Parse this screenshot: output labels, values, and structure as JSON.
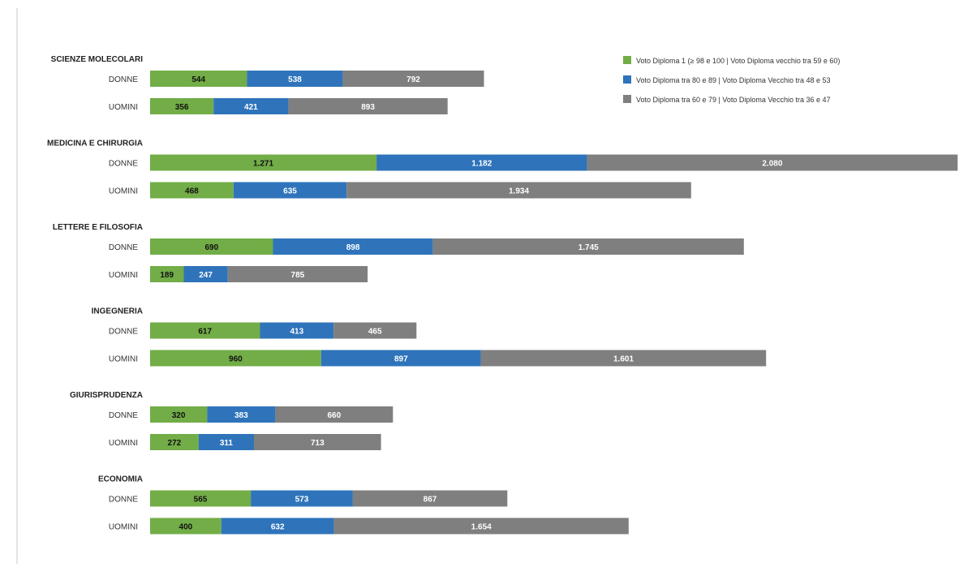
{
  "chart_data": {
    "type": "bar",
    "orientation": "horizontal",
    "stacked": true,
    "title": "",
    "xlabel": "",
    "ylabel": "",
    "xlim": [
      0,
      4600
    ],
    "grid": false,
    "legend_position": "top-right",
    "legend": [
      {
        "label": "Voto Diploma 1 (≥ 98 e 100 | Voto Diploma vecchio tra 59 e 60)",
        "color": "#72ad47"
      },
      {
        "label": "Voto Diploma tra 80 e 89 | Voto Diploma Vecchio tra 48 e 53",
        "color": "#2f74bb"
      },
      {
        "label": "Voto Diploma tra 60 e 79 | Voto Diploma Vecchio tra 36 e 47",
        "color": "#7f7f7f"
      }
    ],
    "groups": [
      {
        "name": "SCIENZE MOLECOLARI",
        "rows": [
          {
            "label": "DONNE",
            "values": [
              544,
              538,
              792
            ],
            "labels": [
              "544",
              "538",
              "792"
            ]
          },
          {
            "label": "UOMINI",
            "values": [
              356,
              421,
              893
            ],
            "labels": [
              "356",
              "421",
              "893"
            ]
          }
        ]
      },
      {
        "name": "MEDICINA E CHIRURGIA",
        "rows": [
          {
            "label": "DONNE",
            "values": [
              1271,
              1182,
              2080
            ],
            "labels": [
              "1.271",
              "1.182",
              "2.080"
            ]
          },
          {
            "label": "UOMINI",
            "values": [
              468,
              635,
              1934
            ],
            "labels": [
              "468",
              "635",
              "1.934"
            ]
          }
        ]
      },
      {
        "name": "LETTERE E FILOSOFIA",
        "rows": [
          {
            "label": "DONNE",
            "values": [
              690,
              898,
              1745
            ],
            "labels": [
              "690",
              "898",
              "1.745"
            ]
          },
          {
            "label": "UOMINI",
            "values": [
              189,
              247,
              785
            ],
            "labels": [
              "189",
              "247",
              "785"
            ]
          }
        ]
      },
      {
        "name": "INGEGNERIA",
        "rows": [
          {
            "label": "DONNE",
            "values": [
              617,
              413,
              465
            ],
            "labels": [
              "617",
              "413",
              "465"
            ]
          },
          {
            "label": "UOMINI",
            "values": [
              960,
              897,
              1601
            ],
            "labels": [
              "960",
              "897",
              "1.601"
            ]
          }
        ]
      },
      {
        "name": "GIURISPRUDENZA",
        "rows": [
          {
            "label": "DONNE",
            "values": [
              320,
              383,
              660
            ],
            "labels": [
              "320",
              "383",
              "660"
            ]
          },
          {
            "label": "UOMINI",
            "values": [
              272,
              311,
              713
            ],
            "labels": [
              "272",
              "311",
              "713"
            ]
          }
        ]
      },
      {
        "name": "ECONOMIA",
        "rows": [
          {
            "label": "DONNE",
            "values": [
              565,
              573,
              867
            ],
            "labels": [
              "565",
              "573",
              "867"
            ]
          },
          {
            "label": "UOMINI",
            "values": [
              400,
              632,
              1654
            ],
            "labels": [
              "400",
              "632",
              "1.654"
            ]
          }
        ]
      }
    ]
  }
}
